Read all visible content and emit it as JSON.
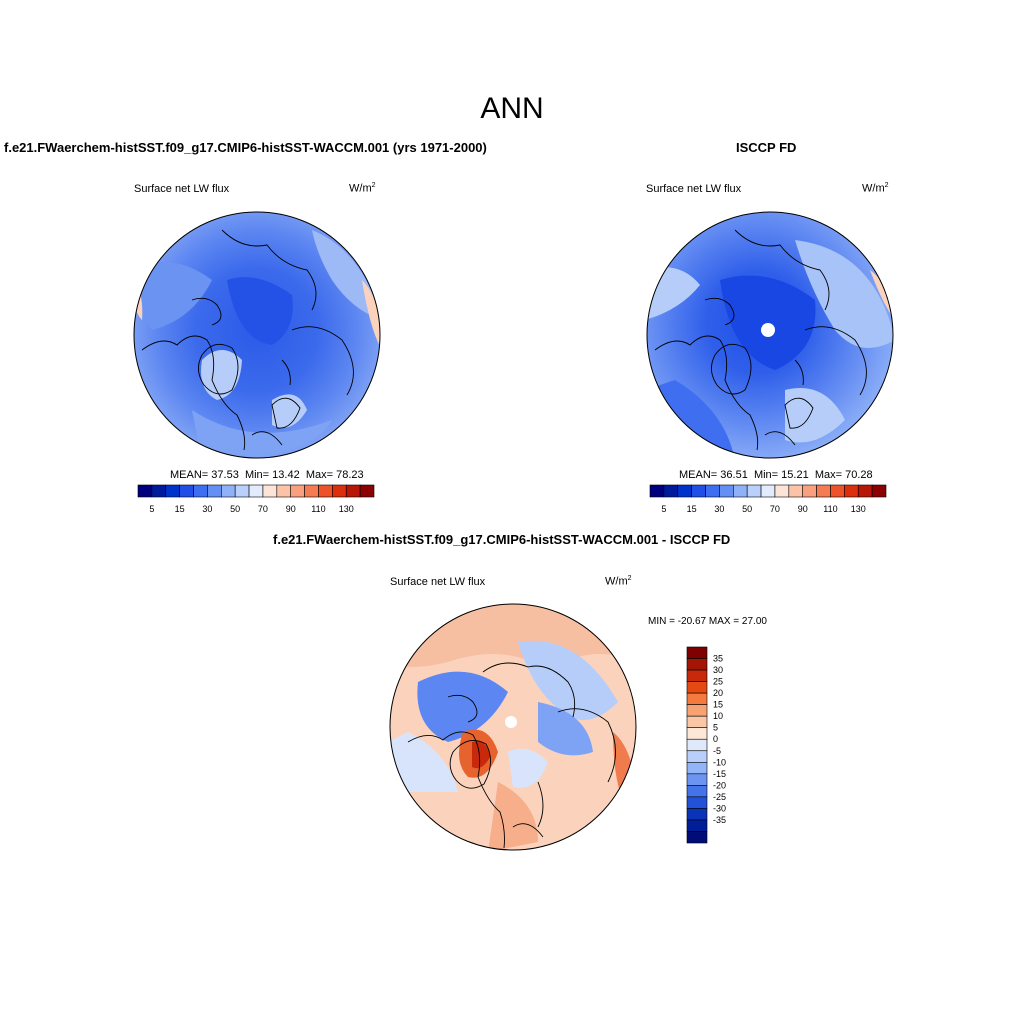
{
  "figure": {
    "title": "ANN"
  },
  "panels": {
    "model": {
      "title": "f.e21.FWaerchem-histSST.f09_g17.CMIP6-histSST-WACCM.001 (yrs 1971-2000)",
      "variable": "Surface net LW flux",
      "units_base": "W/m",
      "units_exp": "2",
      "stats": {
        "mean_label": "MEAN=",
        "mean": "37.53",
        "min_label": "Min=",
        "min": "13.42",
        "max_label": "Max=",
        "max": "78.23"
      }
    },
    "obs": {
      "title": "ISCCP FD",
      "variable": "Surface net LW flux",
      "units_base": "W/m",
      "units_exp": "2",
      "stats": {
        "mean_label": "MEAN=",
        "mean": "36.51",
        "min_label": "Min=",
        "min": "15.21",
        "max_label": "Max=",
        "max": "70.28"
      }
    },
    "diff": {
      "title": "f.e21.FWaerchem-histSST.f09_g17.CMIP6-histSST-WACCM.001 - ISCCP FD",
      "variable": "Surface net LW flux",
      "units_base": "W/m",
      "units_exp": "2",
      "minmax": "MIN = -20.67 MAX =  27.00"
    }
  },
  "colorbars": {
    "absolute": {
      "colors": [
        "#00007f",
        "#001a9e",
        "#0033cc",
        "#1f4fe6",
        "#3f6ef0",
        "#6490f5",
        "#8fb1f8",
        "#b8d0fb",
        "#e2ecfd",
        "#fde4d6",
        "#fcc3a9",
        "#f9a07e",
        "#f57b52",
        "#ee5228",
        "#dd2f0c",
        "#b81707",
        "#8b0000"
      ],
      "tick_labels": [
        "5",
        "15",
        "30",
        "50",
        "70",
        "90",
        "110",
        "130"
      ]
    },
    "difference": {
      "colors": [
        "#7f0000",
        "#a31505",
        "#c8280b",
        "#e64a14",
        "#f57a40",
        "#f9a271",
        "#fbc6a6",
        "#fde8d8",
        "#dfe9fb",
        "#b9cffa",
        "#93b4f7",
        "#6c94f1",
        "#4574ea",
        "#2252d8",
        "#0a33b8",
        "#001e96",
        "#000d78"
      ],
      "tick_labels": [
        "35",
        "30",
        "25",
        "20",
        "15",
        "10",
        "5",
        "0",
        "-5",
        "-10",
        "-15",
        "-20",
        "-25",
        "-30",
        "-35"
      ]
    }
  },
  "map_palette": {
    "deep_blue": "#2a5be8",
    "mid_blue": "#4c7bef",
    "light_blue": "#7ea3f4",
    "pale_blue": "#b6cdf9",
    "very_pale_blue": "#d7e4fc",
    "pale_red": "#fbd3bd",
    "light_red": "#f7ae8b",
    "mid_red": "#f07c4e",
    "land": "#000000",
    "missing": "#ffffff"
  }
}
